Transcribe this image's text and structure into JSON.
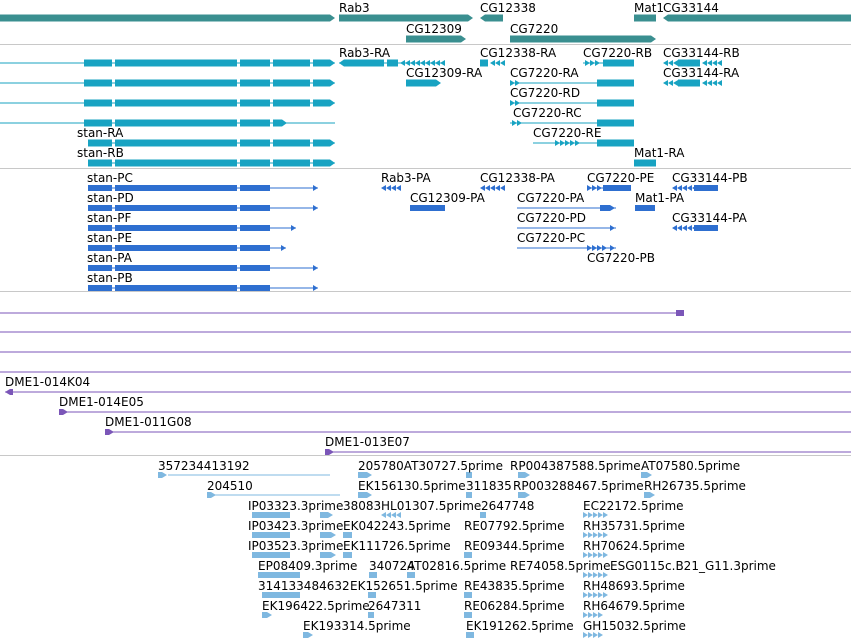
{
  "browser": {
    "genes": [
      "Rab3",
      "CG12338",
      "CG12309",
      "CG7220",
      "Mat1",
      "CG33144"
    ],
    "flybase_transcripts": [
      "Rab3-RA",
      "CG12338-RA",
      "CG7220-RB",
      "CG33144-RB",
      "CG12309-RA",
      "CG7220-RA",
      "CG33144-RA",
      "CG7220-RD",
      "CG7220-RC",
      "CG7220-RE",
      "stan-RA",
      "stan-RB",
      "Mat1-RA"
    ],
    "proteins": [
      "stan-PC",
      "Rab3-PA",
      "CG12338-PA",
      "CG7220-PE",
      "CG33144-PB",
      "stan-PD",
      "CG12309-PA",
      "CG7220-PA",
      "Mat1-PA",
      "stan-PF",
      "CG7220-PD",
      "CG33144-PA",
      "stan-PE",
      "CG7220-PC",
      "stan-PA",
      "CG7220-PB",
      "stan-PB"
    ],
    "clones": [
      "DME1-014K04",
      "DME1-014E05",
      "DME1-011G08",
      "DME1-013E07"
    ],
    "ests": [
      "357234413192",
      "205780AT30727.5prime",
      "RP004387588.5prime",
      "AT07580.5prime",
      "204510",
      "EK156130.5prime",
      "311835",
      "RP003288467.5prime",
      "RH26735.5prime",
      "IP03323.3prime",
      "38083",
      "HL01307.5prime",
      "2647748",
      "EC22172.5prime",
      "IP03423.3prime",
      "EK042243.5prime",
      "RE07792.5prime",
      "RH35731.5prime",
      "IP03523.3prime",
      "EK111726.5prime",
      "RE09344.5prime",
      "RH70624.5prime",
      "EP08409.3prime",
      "340724",
      "AT02816.5prime",
      "RE74058.5prime",
      "ESG0115c.B21_G11.3prime",
      "314133484632",
      "EK152651.5prime",
      "RE43835.5prime",
      "RH48693.5prime",
      "EK196422.5prime",
      "2647311",
      "RE06284.5prime",
      "RH64679.5prime",
      "EK193314.5prime",
      "EK191262.5prime",
      "GH15032.5prime"
    ]
  },
  "colors": {
    "gene": "#3a8f90",
    "transcript": "#18a3c2",
    "protein": "#2e6fd0",
    "clone": "#7b56b8",
    "est": "#7fb8e0",
    "divider": "#c8c8c8"
  }
}
